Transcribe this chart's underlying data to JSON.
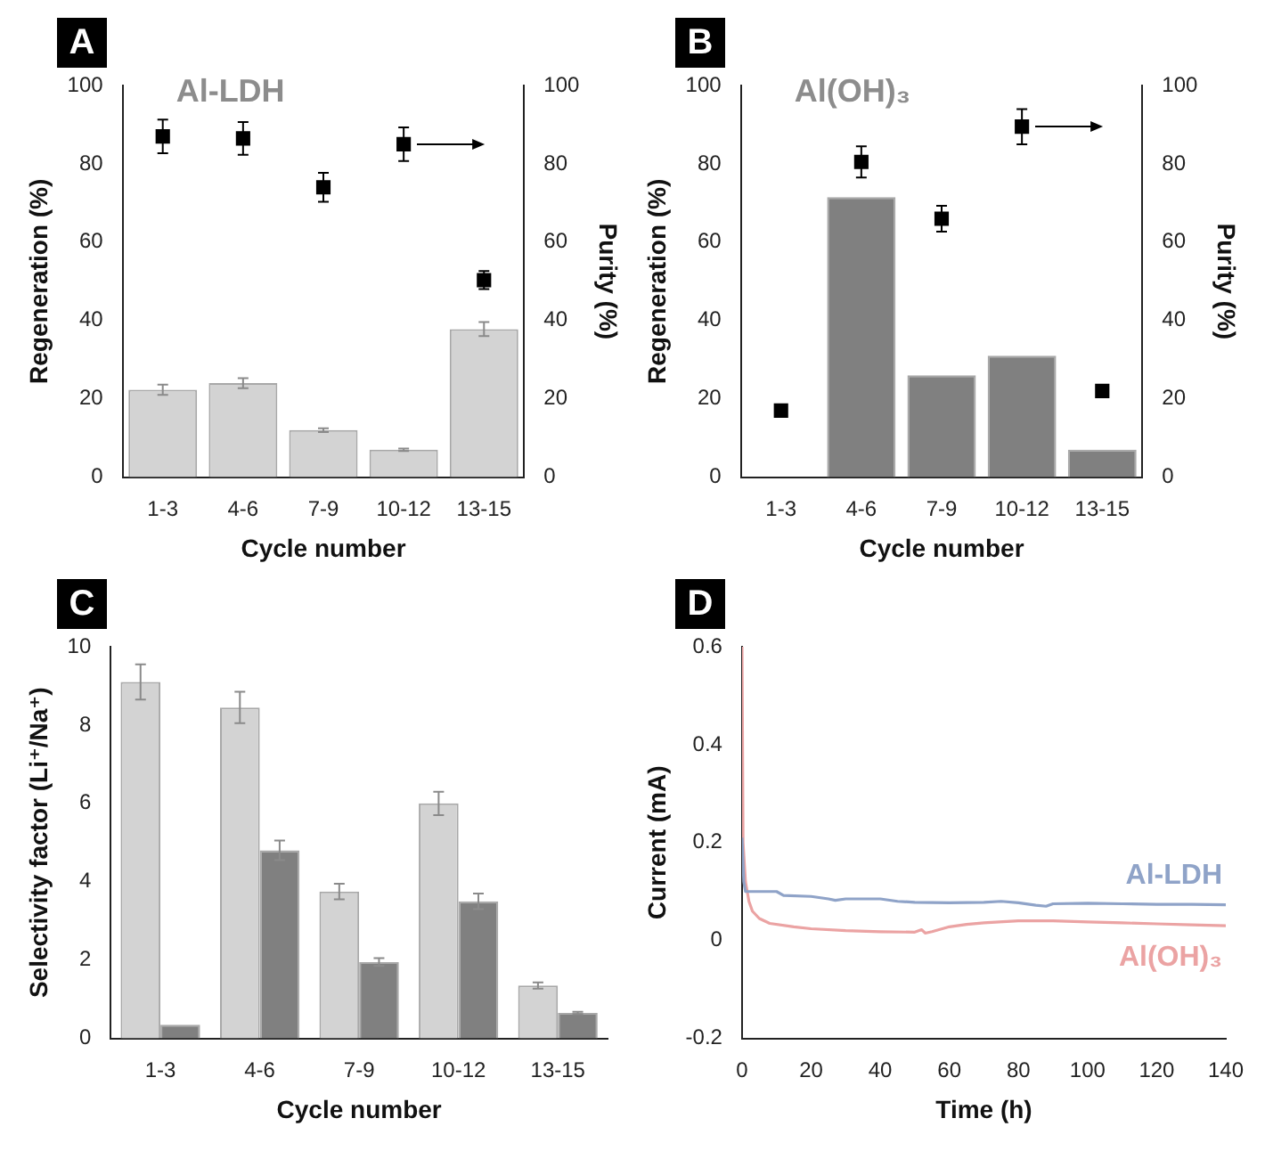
{
  "chart_data": [
    {
      "type": "bar",
      "title": "A",
      "annotations": [
        "Al-LDH"
      ],
      "categories": [
        "1-3",
        "4-6",
        "7-9",
        "10-12",
        "13-15"
      ],
      "xlabel": "Cycle number",
      "ylabel": "Regeneration (%)",
      "y2label": "Purity (%)",
      "ylim": [
        0,
        100
      ],
      "yticks": [
        0,
        20,
        40,
        60,
        80,
        100
      ],
      "y2lim": [
        0,
        100
      ],
      "y2ticks": [
        0,
        20,
        40,
        60,
        80,
        100
      ],
      "legend": false,
      "marker": "square",
      "series": [
        {
          "type": "bar",
          "color": "#d3d3d3",
          "values": [
            22.3,
            24,
            12,
            7,
            37.8
          ],
          "errors": [
            1.3,
            1.3,
            0.5,
            0.3,
            1.8
          ]
        },
        {
          "type": "scatter",
          "axis": "y2",
          "x": [
            "1-3",
            "4-6",
            "7-9",
            "10-12",
            "13-15"
          ],
          "color": "#000000",
          "values": [
            87,
            86.5,
            74,
            85,
            50.3
          ],
          "errors": [
            4.3,
            4.2,
            3.7,
            4.3,
            2.3
          ]
        }
      ]
    },
    {
      "type": "bar",
      "title": "B",
      "annotations": [
        "Al(OH)₃"
      ],
      "categories": [
        "1-3",
        "4-6",
        "7-9",
        "10-12",
        "13-15"
      ],
      "xlabel": "Cycle number",
      "ylabel": "Regeneration (%)",
      "y2label": "Purity (%)",
      "ylim": [
        0,
        100
      ],
      "yticks": [
        0,
        20,
        40,
        60,
        80,
        100
      ],
      "y2lim": [
        0,
        100
      ],
      "y2ticks": [
        0,
        20,
        40,
        60,
        80,
        100
      ],
      "legend": false,
      "marker": "square",
      "series": [
        {
          "type": "bar",
          "color": "#808080",
          "values": [
            null,
            71.5,
            26,
            31,
            7
          ]
        },
        {
          "type": "scatter",
          "axis": "y2",
          "x": [
            "1-3",
            "4-6",
            "7-9",
            "10-12",
            "13-15"
          ],
          "color": "#000000",
          "values": [
            17,
            80.5,
            66,
            89.5,
            22
          ],
          "errors": [
            null,
            4,
            3.3,
            4.5,
            null
          ]
        }
      ]
    },
    {
      "type": "bar",
      "title": "C",
      "categories": [
        "1-3",
        "4-6",
        "7-9",
        "10-12",
        "13-15"
      ],
      "xlabel": "Cycle number",
      "ylabel": "Selectivity factor (Li⁺/Na⁺)",
      "ylim": [
        0,
        10
      ],
      "yticks": [
        0,
        2,
        4,
        6,
        8,
        10
      ],
      "legend": false,
      "series": [
        {
          "color": "#d3d3d3",
          "values": [
            9.1,
            8.45,
            3.75,
            6.0,
            1.35
          ],
          "errors": [
            0.45,
            0.4,
            0.2,
            0.3,
            0.08
          ]
        },
        {
          "color": "#808080",
          "values": [
            0.35,
            4.8,
            1.95,
            3.5,
            0.65
          ],
          "errors": [
            null,
            0.25,
            0.1,
            0.2,
            0.03
          ]
        }
      ]
    },
    {
      "type": "line",
      "title": "D",
      "xlabel": "Time (h)",
      "ylabel": "Current (mA)",
      "xlim": [
        0,
        140
      ],
      "xticks": [
        0,
        20,
        40,
        60,
        80,
        100,
        120,
        140
      ],
      "ylim": [
        -0.2,
        0.6
      ],
      "yticks": [
        -0.2,
        0,
        0.2,
        0.4,
        0.6
      ],
      "legend": false,
      "series": [
        {
          "name": "Al-LDH",
          "color": "#8fa3c8",
          "x": [
            0,
            0.5,
            1,
            5,
            10,
            12,
            20,
            25,
            27,
            30,
            40,
            45,
            50,
            60,
            70,
            75,
            80,
            85,
            88,
            90,
            100,
            110,
            120,
            130,
            140
          ],
          "values": [
            0.21,
            0.12,
            0.1,
            0.1,
            0.1,
            0.092,
            0.09,
            0.085,
            0.082,
            0.085,
            0.085,
            0.08,
            0.078,
            0.077,
            0.078,
            0.08,
            0.077,
            0.072,
            0.07,
            0.075,
            0.076,
            0.075,
            0.074,
            0.074,
            0.073
          ]
        },
        {
          "name": "Al(OH)₃",
          "color": "#eba3a3",
          "x": [
            0,
            0.3,
            1,
            2,
            3,
            5,
            8,
            15,
            20,
            30,
            40,
            50,
            52,
            53,
            55,
            60,
            65,
            70,
            80,
            90,
            100,
            110,
            120,
            130,
            140
          ],
          "values": [
            0.6,
            0.2,
            0.12,
            0.08,
            0.06,
            0.045,
            0.035,
            0.028,
            0.024,
            0.02,
            0.018,
            0.017,
            0.022,
            0.015,
            0.018,
            0.028,
            0.033,
            0.036,
            0.04,
            0.04,
            0.038,
            0.036,
            0.034,
            0.032,
            0.03
          ]
        }
      ]
    }
  ]
}
